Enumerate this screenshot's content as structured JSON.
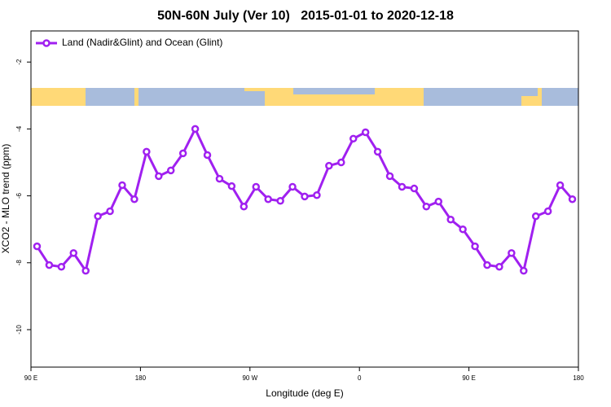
{
  "chart_data": {
    "type": "line",
    "title": "50N-60N July (Ver 10)   2015-01-01 to 2020-12-18",
    "x_label": "Longitude (deg E)",
    "y_label": "XCO2 - MLO trend (ppm)",
    "xlim": [
      90,
      540
    ],
    "ylim": [
      -11.12,
      -1.07
    ],
    "xticks": [
      {
        "value": 90,
        "label": "90 E"
      },
      {
        "value": 180,
        "label": "180"
      },
      {
        "value": 270,
        "label": "90 W"
      },
      {
        "value": 360,
        "label": "0"
      },
      {
        "value": 450,
        "label": "90 E"
      },
      {
        "value": 540,
        "label": "180"
      }
    ],
    "yticks": [
      -2,
      -4,
      -6,
      -8,
      -10
    ],
    "legend_position": "top-left",
    "x": [
      95,
      105,
      115,
      125,
      135,
      145,
      155,
      165,
      175,
      185,
      195,
      205,
      215,
      225,
      235,
      245,
      255,
      265,
      275,
      285,
      295,
      305,
      315,
      325,
      335,
      345,
      355,
      365,
      375,
      385,
      395,
      405,
      415,
      425,
      435,
      445,
      455,
      465,
      475,
      485,
      495,
      505,
      515,
      525,
      535
    ],
    "series": [
      {
        "name": "Land (Nadir&Glint) and Ocean (Glint)",
        "color": "#a020f0",
        "values": [
          -7.51,
          -8.07,
          -8.12,
          -7.71,
          -8.24,
          -6.61,
          -6.46,
          -5.68,
          -6.1,
          -4.68,
          -5.41,
          -5.24,
          -4.73,
          -4.0,
          -4.78,
          -5.49,
          -5.71,
          -6.32,
          -5.73,
          -6.1,
          -6.15,
          -5.73,
          -6.02,
          -5.98,
          -5.1,
          -5.0,
          -4.29,
          -4.1,
          -4.68,
          -5.41,
          -5.73,
          -5.78,
          -6.32,
          -6.17,
          -6.71,
          -7.0,
          -7.51,
          -8.07,
          -8.12,
          -7.71,
          -8.24,
          -6.61,
          -6.46,
          -5.68,
          -6.1
        ]
      }
    ]
  }
}
